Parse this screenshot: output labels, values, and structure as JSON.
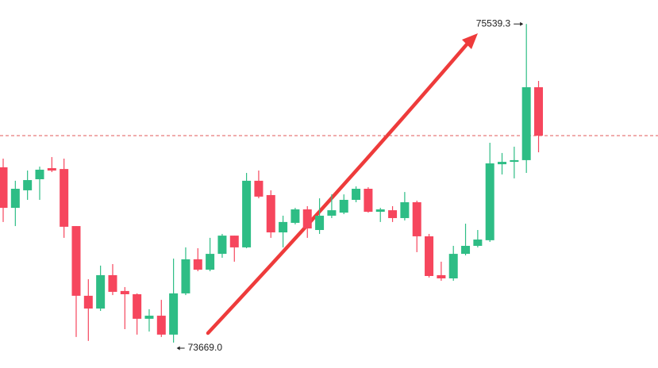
{
  "chart_data": {
    "type": "candlestick",
    "open": [
      74698,
      74460,
      74563,
      74628,
      74693,
      74688,
      74353,
      73944,
      73869,
      74065,
      73972,
      73953,
      73809,
      73827,
      73716,
      73958,
      74158,
      74097,
      74190,
      74297,
      74228,
      74619,
      74535,
      74316,
      74372,
      74451,
      74330,
      74414,
      74432,
      74507,
      74572,
      74437,
      74446,
      74400,
      74493,
      74293,
      74065,
      74046,
      74190,
      74237,
      74270,
      74716,
      74730,
      74740,
      75168
    ],
    "high": [
      74749,
      74619,
      74679,
      74702,
      74758,
      74749,
      74353,
      74041,
      74121,
      74130,
      73995,
      73958,
      73865,
      73920,
      74162,
      74228,
      74223,
      74284,
      74307,
      74297,
      74665,
      74679,
      74563,
      74414,
      74460,
      74470,
      74516,
      74539,
      74539,
      74586,
      74581,
      74460,
      74470,
      74553,
      74502,
      74307,
      74144,
      74237,
      74367,
      74330,
      74842,
      74782,
      74819,
      75539.3,
      75205
    ],
    "low": [
      74377,
      74353,
      74507,
      74507,
      74670,
      74284,
      73702,
      73679,
      73855,
      73948,
      73748,
      73716,
      73734,
      73702,
      73669,
      73948,
      74088,
      74088,
      74167,
      74144,
      74223,
      74516,
      74284,
      74228,
      74363,
      74284,
      74307,
      74400,
      74423,
      74493,
      74432,
      74377,
      74377,
      74386,
      74200,
      74051,
      74032,
      74032,
      74181,
      74228,
      74260,
      74656,
      74633,
      74665,
      74786
    ],
    "close": [
      74460,
      74572,
      74623,
      74684,
      74679,
      74349,
      73944,
      73869,
      74065,
      73967,
      73953,
      73809,
      73827,
      73716,
      73958,
      74158,
      74097,
      74190,
      74297,
      74228,
      74619,
      74526,
      74316,
      74377,
      74451,
      74339,
      74414,
      74446,
      74507,
      74572,
      74437,
      74451,
      74400,
      74493,
      74293,
      74060,
      74046,
      74190,
      74237,
      74274,
      74721,
      74730,
      74740,
      75168,
      74884
    ],
    "up_color": "#2ebd85",
    "down_color": "#f6465d",
    "ylim": [
      73520,
      75680
    ],
    "price_line": 74884,
    "annotations": [
      {
        "value": 75539.3,
        "label": "75539.3"
      },
      {
        "value": 73669,
        "label": "73669.0"
      }
    ]
  }
}
